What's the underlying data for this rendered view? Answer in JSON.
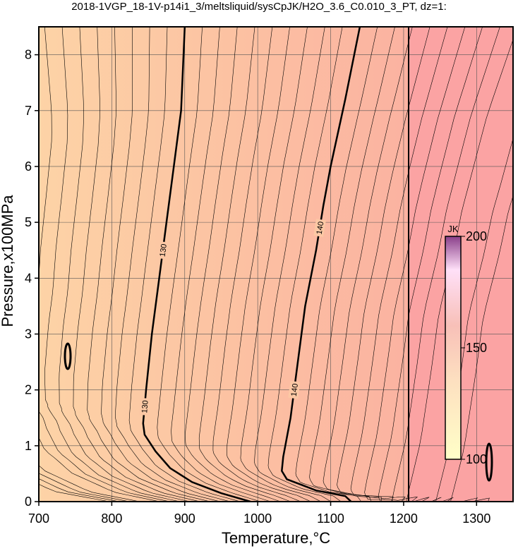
{
  "chart_data": {
    "type": "contour",
    "title": "2018-1VGP_18-1V-p14i1_3/meltsliquid/sysCpJK/H2O_3.6_C0.010_3_PT, dz=1:",
    "x_label": "Temperature,°C",
    "y_label": "Pressure,x100MPa",
    "xlim": [
      700,
      1350
    ],
    "ylim": [
      0,
      8.5
    ],
    "xticks": [
      700,
      800,
      900,
      1000,
      1100,
      1200,
      1300
    ],
    "yticks": [
      0,
      1,
      2,
      3,
      4,
      5,
      6,
      7,
      8
    ],
    "grid": true,
    "contours": [
      {
        "level": 130,
        "color": "#000000",
        "x": [
          900,
          895,
          885,
          875,
          865,
          855,
          847,
          843,
          845,
          860,
          880,
          910,
          950,
          990
        ],
        "y": [
          8.5,
          7,
          6,
          5,
          4,
          3,
          2,
          1.4,
          1.2,
          0.9,
          0.6,
          0.35,
          0.15,
          0
        ]
      },
      {
        "level": 140,
        "color": "#000000",
        "x": [
          1140,
          1120,
          1100,
          1090,
          1080,
          1065,
          1055,
          1045,
          1035,
          1033,
          1040,
          1060,
          1080,
          1100,
          1120,
          1128
        ],
        "y": [
          8.5,
          7.2,
          6,
          5.3,
          4.5,
          3.5,
          2.5,
          1.5,
          0.8,
          0.55,
          0.4,
          0.3,
          0.2,
          0.15,
          0.1,
          0
        ]
      }
    ],
    "colorbar": {
      "label": "JK",
      "lim": [
        100,
        200
      ],
      "ticks": [
        100,
        150,
        200
      ]
    }
  }
}
